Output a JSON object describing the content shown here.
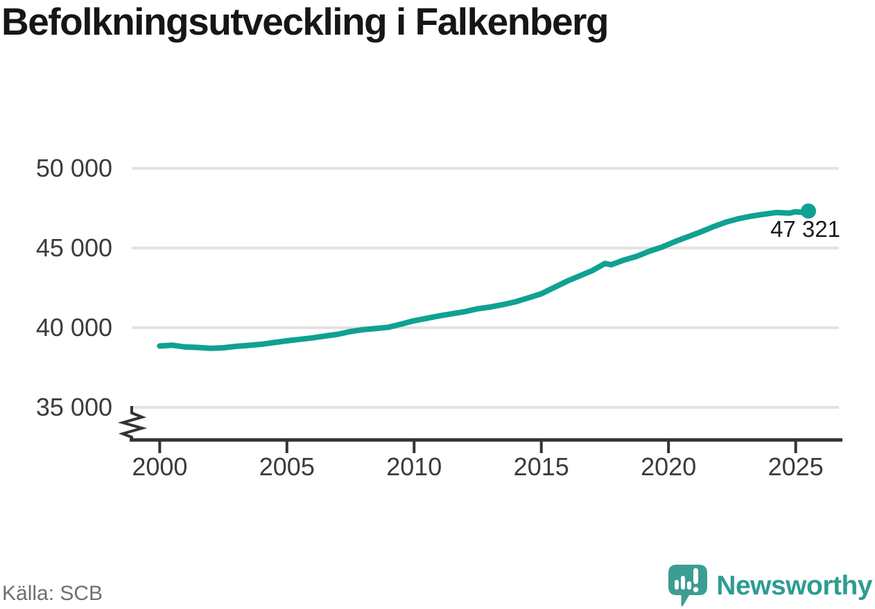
{
  "page": {
    "title": "Befolkningsutveckling i Falkenberg",
    "source": "Källa: SCB"
  },
  "branding": {
    "wordmark": "Newsworthy",
    "logo_icon": "newsworthy-speech-bubble-bar-chart-icon",
    "color": "#2E9C92"
  },
  "chart_data": {
    "type": "line",
    "title": "Befolkningsutveckling i Falkenberg",
    "xlabel": "",
    "ylabel": "",
    "grid": "horizontal",
    "axis_break": true,
    "line_color": "#10A192",
    "grid_color": "#E3E3E3",
    "axis_color": "#333333",
    "label_color": "#3B3B3B",
    "x_domain": [
      1998.9,
      2026.7
    ],
    "y_domain": [
      35000,
      50000
    ],
    "y_ticks": [
      {
        "v": 50000,
        "label": "50 000"
      },
      {
        "v": 45000,
        "label": "45 000"
      },
      {
        "v": 40000,
        "label": "40 000"
      },
      {
        "v": 35000,
        "label": "35 000"
      }
    ],
    "x_ticks": [
      {
        "v": 2000,
        "label": "2000"
      },
      {
        "v": 2005,
        "label": "2005"
      },
      {
        "v": 2010,
        "label": "2010"
      },
      {
        "v": 2015,
        "label": "2015"
      },
      {
        "v": 2020,
        "label": "2020"
      },
      {
        "v": 2025,
        "label": "2025"
      }
    ],
    "latest_point": {
      "x": 2025.5,
      "y": 47321,
      "label": "47 321"
    },
    "series": [
      {
        "name": "Befolkning i Falkenberg",
        "points": [
          [
            2000.0,
            38852
          ],
          [
            2000.5,
            38900
          ],
          [
            2001.0,
            38790
          ],
          [
            2001.5,
            38760
          ],
          [
            2002.0,
            38705
          ],
          [
            2002.5,
            38740
          ],
          [
            2003.0,
            38830
          ],
          [
            2003.5,
            38890
          ],
          [
            2004.0,
            38960
          ],
          [
            2004.5,
            39070
          ],
          [
            2005.0,
            39180
          ],
          [
            2005.5,
            39270
          ],
          [
            2006.0,
            39360
          ],
          [
            2006.5,
            39480
          ],
          [
            2007.0,
            39585
          ],
          [
            2007.5,
            39760
          ],
          [
            2008.0,
            39880
          ],
          [
            2008.5,
            39950
          ],
          [
            2009.0,
            40030
          ],
          [
            2009.5,
            40230
          ],
          [
            2010.0,
            40440
          ],
          [
            2010.5,
            40590
          ],
          [
            2011.0,
            40750
          ],
          [
            2011.5,
            40880
          ],
          [
            2012.0,
            41010
          ],
          [
            2012.5,
            41190
          ],
          [
            2013.0,
            41300
          ],
          [
            2013.5,
            41450
          ],
          [
            2014.0,
            41630
          ],
          [
            2014.5,
            41880
          ],
          [
            2015.0,
            42130
          ],
          [
            2015.5,
            42520
          ],
          [
            2016.0,
            42910
          ],
          [
            2016.5,
            43250
          ],
          [
            2017.0,
            43580
          ],
          [
            2017.5,
            44030
          ],
          [
            2017.75,
            43950
          ],
          [
            2018.25,
            44250
          ],
          [
            2018.75,
            44480
          ],
          [
            2019.25,
            44800
          ],
          [
            2019.75,
            45060
          ],
          [
            2020.25,
            45400
          ],
          [
            2020.75,
            45700
          ],
          [
            2021.25,
            46000
          ],
          [
            2021.75,
            46330
          ],
          [
            2022.25,
            46620
          ],
          [
            2022.75,
            46840
          ],
          [
            2023.25,
            47000
          ],
          [
            2023.75,
            47120
          ],
          [
            2024.25,
            47230
          ],
          [
            2024.75,
            47190
          ],
          [
            2025.0,
            47280
          ],
          [
            2025.25,
            47240
          ],
          [
            2025.5,
            47321
          ]
        ]
      }
    ]
  }
}
